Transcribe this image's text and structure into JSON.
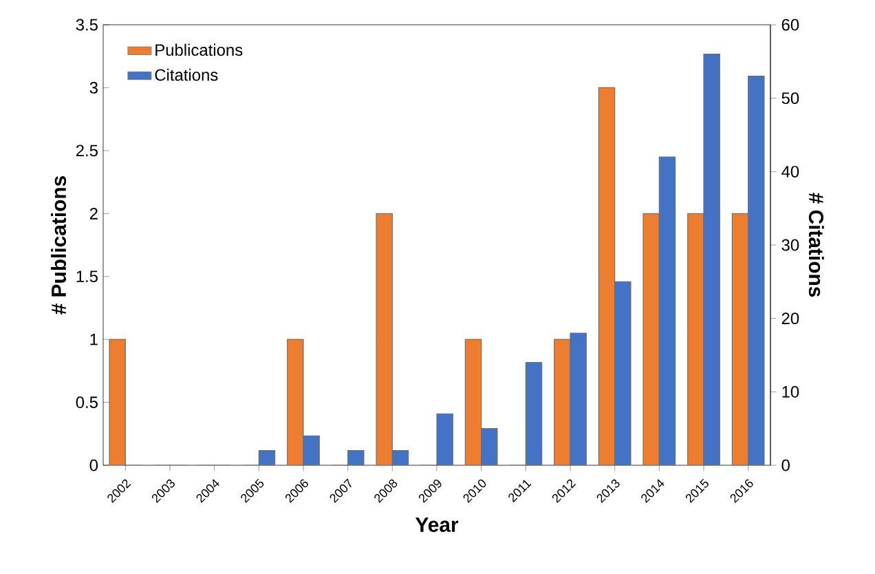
{
  "chart_data": {
    "type": "bar",
    "xlabel": "Year",
    "ylabel": "# Publications",
    "y2label": "# Citations",
    "categories": [
      "2002",
      "2003",
      "2004",
      "2005",
      "2006",
      "2007",
      "2008",
      "2009",
      "2010",
      "2011",
      "2012",
      "2013",
      "2014",
      "2015",
      "2016"
    ],
    "series": [
      {
        "name": "Publications",
        "color": "#ed7d31",
        "axis": "y",
        "values": [
          1,
          0,
          0,
          0,
          1,
          0,
          2,
          0,
          1,
          0,
          1,
          3,
          2,
          2,
          2
        ]
      },
      {
        "name": "Citations",
        "color": "#4472c4",
        "axis": "y2",
        "values": [
          0,
          0,
          0,
          2,
          4,
          2,
          2,
          7,
          5,
          14,
          18,
          25,
          42,
          56,
          53
        ]
      }
    ],
    "ylim": [
      0,
      3.5
    ],
    "yticks": [
      0,
      0.5,
      1,
      1.5,
      2,
      2.5,
      3,
      3.5
    ],
    "y2lim": [
      0,
      60
    ],
    "y2ticks": [
      0,
      10,
      20,
      30,
      40,
      50,
      60
    ],
    "legend": "top left",
    "grid": false
  }
}
